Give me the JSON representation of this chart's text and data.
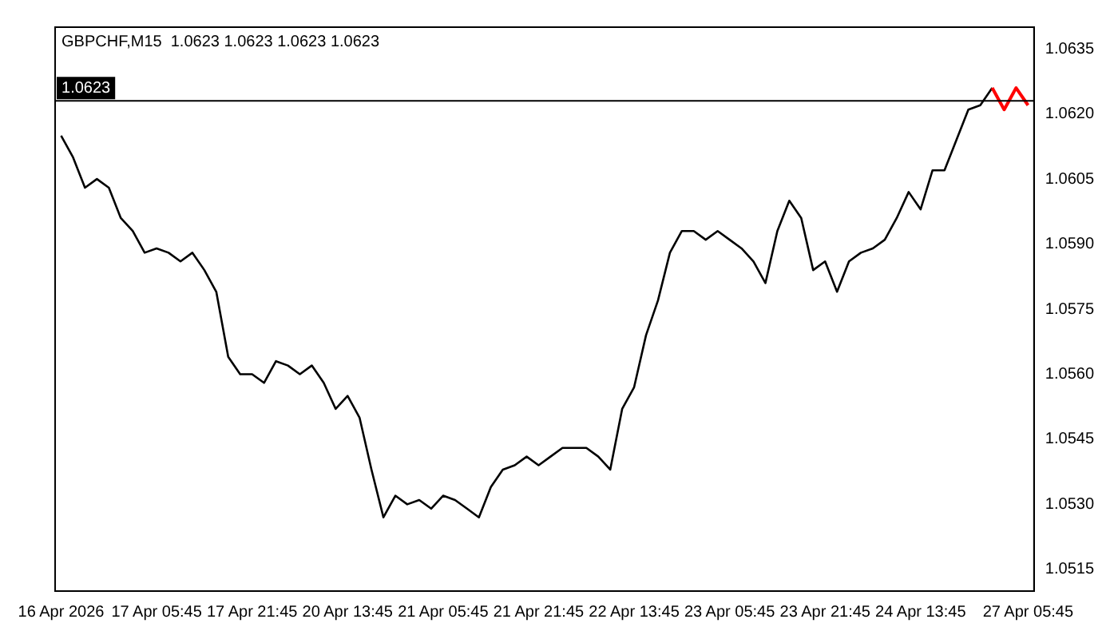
{
  "chart_data": {
    "type": "line",
    "title": "GBPCHF,M15  1.0623 1.0623 1.0623 1.0623",
    "categories": [
      "16 Apr 2026",
      null,
      null,
      null,
      null,
      null,
      null,
      null,
      "17 Apr 05:45",
      null,
      null,
      null,
      null,
      null,
      null,
      null,
      "17 Apr 21:45",
      null,
      null,
      null,
      null,
      null,
      null,
      null,
      "20 Apr 13:45",
      null,
      null,
      null,
      null,
      null,
      null,
      null,
      "21 Apr 05:45",
      null,
      null,
      null,
      null,
      null,
      null,
      null,
      "21 Apr 21:45",
      null,
      null,
      null,
      null,
      null,
      null,
      null,
      "22 Apr 13:45",
      null,
      null,
      null,
      null,
      null,
      null,
      null,
      "23 Apr 05:45",
      null,
      null,
      null,
      null,
      null,
      null,
      null,
      "23 Apr 21:45",
      null,
      null,
      null,
      null,
      null,
      null,
      null,
      "24 Apr 13:45",
      null,
      null,
      null,
      null,
      null,
      null,
      null,
      null,
      "27 Apr 05:45"
    ],
    "series": [
      {
        "color": "#000000",
        "values": [
          1.0615,
          1.061,
          1.0603,
          1.0605,
          1.0603,
          1.0596,
          1.0593,
          1.0588,
          1.0589,
          1.0588,
          1.0586,
          1.0588,
          1.0584,
          1.0579,
          1.0564,
          1.056,
          1.056,
          1.0558,
          1.0563,
          1.0562,
          1.056,
          1.0562,
          1.0558,
          1.0552,
          1.0555,
          1.055,
          1.0538,
          1.0527,
          1.0532,
          1.053,
          1.0531,
          1.0529,
          1.0532,
          1.0531,
          1.0529,
          1.0527,
          1.0534,
          1.0538,
          1.0539,
          1.0541,
          1.0539,
          1.0541,
          1.0543,
          1.0543,
          1.0543,
          1.0541,
          1.0538,
          1.0552,
          1.0557,
          1.0569,
          1.0577,
          1.0588,
          1.0593,
          1.0593,
          1.0591,
          1.0593,
          1.0591,
          1.0589,
          1.0586,
          1.0581,
          1.0593,
          1.06,
          1.0596,
          1.0584,
          1.0586,
          1.0579,
          1.0586,
          1.0588,
          1.0589,
          1.0591,
          1.0596,
          1.0602,
          1.0598,
          1.0607,
          1.0607,
          1.0614,
          1.0621,
          1.0622,
          1.0626,
          null,
          null,
          null
        ]
      },
      {
        "color": "#ff0000",
        "values": [
          null,
          null,
          null,
          null,
          null,
          null,
          null,
          null,
          null,
          null,
          null,
          null,
          null,
          null,
          null,
          null,
          null,
          null,
          null,
          null,
          null,
          null,
          null,
          null,
          null,
          null,
          null,
          null,
          null,
          null,
          null,
          null,
          null,
          null,
          null,
          null,
          null,
          null,
          null,
          null,
          null,
          null,
          null,
          null,
          null,
          null,
          null,
          null,
          null,
          null,
          null,
          null,
          null,
          null,
          null,
          null,
          null,
          null,
          null,
          null,
          null,
          null,
          null,
          null,
          null,
          null,
          null,
          null,
          null,
          null,
          null,
          null,
          null,
          null,
          null,
          null,
          null,
          null,
          1.0626,
          1.0621,
          1.0626,
          1.0622
        ]
      }
    ],
    "ylim": [
      1.051,
      1.064
    ],
    "yticks": [
      {
        "value": 1.0515,
        "label": "1.0515"
      },
      {
        "value": 1.053,
        "label": "1.0530"
      },
      {
        "value": 1.0545,
        "label": "1.0545"
      },
      {
        "value": 1.056,
        "label": "1.0560"
      },
      {
        "value": 1.0575,
        "label": "1.0575"
      },
      {
        "value": 1.059,
        "label": "1.0590"
      },
      {
        "value": 1.0605,
        "label": "1.0605"
      },
      {
        "value": 1.062,
        "label": "1.0620"
      },
      {
        "value": 1.0635,
        "label": "1.0635"
      }
    ],
    "ref_lines": [
      {
        "axis": "y",
        "value": 1.0623,
        "label": "1.0623",
        "color": "#000000"
      }
    ],
    "grid": false,
    "legend": false,
    "marker": "none",
    "line_style": "solid"
  }
}
